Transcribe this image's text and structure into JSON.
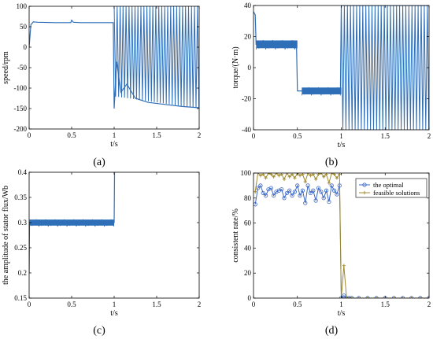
{
  "chart_data": [
    {
      "type": "line",
      "panel_label": "(a)",
      "xlabel": "t/s",
      "ylabel": "speed/rpm",
      "xlim": [
        0,
        2
      ],
      "ylim": [
        -200,
        100
      ],
      "xticks": [
        "0",
        "0.5",
        "1",
        "1.5",
        "2"
      ],
      "yticks": [
        "-200",
        "-150",
        "-100",
        "-50",
        "0",
        "50",
        "100"
      ],
      "color": "#2F6FB8",
      "grid": false,
      "series": [
        {
          "x": [
            0,
            0.02,
            0.05,
            0.1,
            0.3,
            0.49,
            0.5,
            0.52,
            0.6,
            0.8,
            0.99,
            1.0,
            1.03,
            1.08,
            1.15,
            1.25,
            1.4,
            1.6,
            1.8,
            2.0
          ],
          "y": [
            0,
            55,
            62,
            61,
            60,
            60,
            66,
            61,
            60,
            60,
            60,
            -150,
            -35,
            -110,
            -90,
            -125,
            -135,
            -140,
            -145,
            -148
          ],
          "oscillation": {
            "start": 1.0,
            "upper": 100,
            "lower_start": -120,
            "lower_end": -150,
            "period": 0.035
          }
        }
      ]
    },
    {
      "type": "line",
      "panel_label": "(b)",
      "xlabel": "t/s",
      "ylabel": "torque/(N·m)",
      "xlim": [
        0,
        2
      ],
      "ylim": [
        -40,
        40
      ],
      "xticks": [
        "0",
        "0.5",
        "1",
        "1.5",
        "2"
      ],
      "yticks": [
        "-40",
        "-20",
        "0",
        "20",
        "40"
      ],
      "color": "#2F6FB8",
      "grid": false,
      "series": [
        {
          "x": [
            0,
            0.02,
            0.03,
            0.49,
            0.5,
            0.99,
            1.0,
            2.0
          ],
          "y": [
            36,
            34,
            15,
            15,
            -15,
            -15,
            40,
            40
          ],
          "bands": [
            {
              "from": 0.03,
              "to": 0.5,
              "center": 15,
              "half_width": 2.5
            },
            {
              "from": 0.55,
              "to": 1.0,
              "center": -15,
              "half_width": 2.2
            }
          ],
          "oscillation": {
            "start": 1.0,
            "upper": 40,
            "lower": -40,
            "period": 0.035
          }
        }
      ]
    },
    {
      "type": "line",
      "panel_label": "(c)",
      "xlabel": "t/s",
      "ylabel": "the amplitude of stator flux/Wb",
      "xlim": [
        0,
        2
      ],
      "ylim": [
        0.15,
        0.4
      ],
      "xticks": [
        "0",
        "0.5",
        "1",
        "1.5",
        "2"
      ],
      "yticks": [
        "0.15",
        "0.2",
        "0.25",
        "0.3",
        "0.35",
        "0.4"
      ],
      "color": "#2F6FB8",
      "grid": false,
      "series": [
        {
          "x": [
            0,
            0.005,
            0.99,
            1.0,
            1.005
          ],
          "y": [
            0.2,
            0.3,
            0.3,
            0.3,
            0.4
          ],
          "bands": [
            {
              "from": 0.005,
              "to": 1.0,
              "center": 0.3,
              "half_width": 0.006
            }
          ]
        }
      ]
    },
    {
      "type": "line",
      "panel_label": "(d)",
      "xlabel": "t/s",
      "ylabel": "consistent rate/%",
      "xlim": [
        0,
        2
      ],
      "ylim": [
        0,
        100
      ],
      "xticks": [
        "0",
        "0.5",
        "1",
        "1.5",
        "2"
      ],
      "yticks": [
        "0",
        "20",
        "40",
        "60",
        "80",
        "100"
      ],
      "legend": "top-right",
      "grid": false,
      "series": [
        {
          "name": "the optimal",
          "color": "#3A66C4",
          "marker": "circle",
          "x": [
            0.02,
            0.05,
            0.08,
            0.11,
            0.14,
            0.17,
            0.2,
            0.23,
            0.26,
            0.29,
            0.32,
            0.35,
            0.38,
            0.41,
            0.44,
            0.47,
            0.5,
            0.53,
            0.56,
            0.59,
            0.62,
            0.65,
            0.68,
            0.71,
            0.74,
            0.77,
            0.8,
            0.83,
            0.86,
            0.89,
            0.92,
            0.95,
            0.98,
            1.0,
            1.03,
            1.06,
            1.09,
            1.12,
            1.2,
            1.3,
            1.4,
            1.5,
            1.6,
            1.7,
            1.8,
            1.9,
            2.0
          ],
          "y": [
            75,
            88,
            90,
            84,
            82,
            87,
            88,
            82,
            85,
            86,
            87,
            80,
            84,
            86,
            82,
            85,
            90,
            82,
            86,
            76,
            90,
            84,
            86,
            78,
            88,
            85,
            80,
            86,
            77,
            90,
            86,
            83,
            90,
            0,
            2,
            0,
            0,
            0,
            0,
            0,
            0,
            0,
            0,
            0,
            0,
            0,
            0
          ]
        },
        {
          "name": "feasible solutions",
          "color": "#A08A2E",
          "marker": "plus",
          "x": [
            0.02,
            0.05,
            0.08,
            0.11,
            0.14,
            0.17,
            0.2,
            0.23,
            0.26,
            0.29,
            0.32,
            0.35,
            0.38,
            0.41,
            0.44,
            0.47,
            0.5,
            0.53,
            0.56,
            0.59,
            0.62,
            0.65,
            0.68,
            0.71,
            0.74,
            0.77,
            0.8,
            0.83,
            0.86,
            0.89,
            0.92,
            0.95,
            0.98,
            1.0,
            1.03,
            1.06,
            1.09,
            1.12,
            1.2,
            1.3,
            1.4,
            1.5,
            1.6,
            1.7,
            1.8,
            1.9,
            2.0
          ],
          "y": [
            85,
            100,
            98,
            99,
            96,
            100,
            99,
            97,
            100,
            98,
            99,
            95,
            100,
            97,
            99,
            96,
            100,
            98,
            99,
            93,
            100,
            98,
            99,
            95,
            99,
            100,
            97,
            99,
            92,
            100,
            99,
            96,
            99,
            0,
            26,
            0,
            0,
            0,
            0,
            0,
            0,
            0,
            0,
            0,
            0,
            0,
            0
          ]
        }
      ]
    }
  ]
}
